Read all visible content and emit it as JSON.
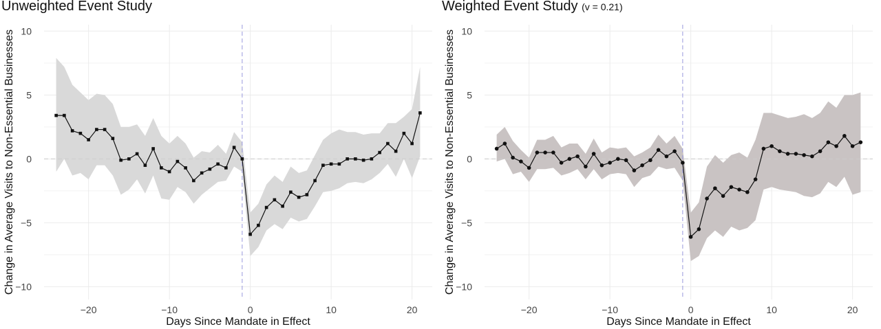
{
  "chart_data": [
    {
      "type": "line",
      "title": "Unweighted Event Study",
      "subtitle": "",
      "xlabel": "Days Since Mandate in Effect",
      "ylabel": "Change in Average Visits to Non-Essential Businesses",
      "xlim": [
        -25.5,
        22.5
      ],
      "ylim": [
        -11,
        10.5
      ],
      "xticks": [
        -20,
        -10,
        0,
        10,
        20
      ],
      "yticks": [
        -10,
        -5,
        0,
        5,
        10
      ],
      "vline": -1,
      "hline": 0,
      "grid": true,
      "colors": {
        "ribbon": "#d9d9d9",
        "line": "#111111",
        "vline": "#9999dd",
        "hline": "#cccccc"
      },
      "x": [
        -24,
        -23,
        -22,
        -21,
        -20,
        -19,
        -18,
        -17,
        -16,
        -15,
        -14,
        -13,
        -12,
        -11,
        -10,
        -9,
        -8,
        -7,
        -6,
        -5,
        -4,
        -3,
        -2,
        -1,
        0,
        1,
        2,
        3,
        4,
        5,
        6,
        7,
        8,
        9,
        10,
        11,
        12,
        13,
        14,
        15,
        16,
        17,
        18,
        19,
        20,
        21
      ],
      "series": [
        {
          "values": [
            3.4,
            3.4,
            2.2,
            2.0,
            1.5,
            2.3,
            2.3,
            1.6,
            -0.1,
            0.0,
            0.4,
            -0.5,
            0.8,
            -0.7,
            -1.0,
            -0.2,
            -0.7,
            -1.7,
            -1.1,
            -0.8,
            -0.4,
            -0.7,
            0.9,
            0.0,
            -5.9,
            -5.2,
            -3.8,
            -3.2,
            -3.7,
            -2.6,
            -3.0,
            -2.8,
            -1.7,
            -0.5,
            -0.4,
            -0.4,
            0.0,
            0.0,
            -0.1,
            0.0,
            0.5,
            1.2,
            0.6,
            2.0,
            1.2,
            3.6
          ],
          "lower": [
            -1.0,
            0.0,
            -1.3,
            -1.1,
            -1.6,
            -0.5,
            -0.5,
            -1.3,
            -2.8,
            -2.4,
            -1.6,
            -2.7,
            -1.3,
            -3.1,
            -3.2,
            -2.2,
            -2.6,
            -3.5,
            -2.8,
            -2.3,
            -1.8,
            -1.7,
            -0.6,
            -1.0,
            -7.6,
            -6.9,
            -5.6,
            -5.1,
            -5.5,
            -4.6,
            -4.9,
            -4.7,
            -3.7,
            -2.6,
            -2.5,
            -2.3,
            -1.9,
            -1.8,
            -1.9,
            -1.6,
            -1.1,
            -0.4,
            -1.4,
            0.0,
            -1.5,
            0.2
          ],
          "upper": [
            7.9,
            7.2,
            5.8,
            5.2,
            4.6,
            5.1,
            5.0,
            4.3,
            2.5,
            2.5,
            2.7,
            1.8,
            3.2,
            1.8,
            1.2,
            1.8,
            1.2,
            0.1,
            0.6,
            0.5,
            1.1,
            0.4,
            2.1,
            1.3,
            -4.2,
            -3.5,
            -2.0,
            -1.3,
            -1.8,
            -0.6,
            -1.1,
            -0.9,
            0.3,
            1.5,
            2.0,
            2.3,
            2.1,
            2.1,
            1.9,
            2.0,
            2.0,
            2.8,
            2.8,
            3.3,
            3.9,
            7.2
          ]
        }
      ]
    },
    {
      "type": "line",
      "title": "Weighted Event Study",
      "subtitle": "(v = 0.21)",
      "xlabel": "Days Since Mandate in Effect",
      "ylabel": "Change in Average Visits to Non-Essential Businesses",
      "xlim": [
        -25.5,
        22.5
      ],
      "ylim": [
        -11,
        10.5
      ],
      "xticks": [
        -20,
        -10,
        0,
        10,
        20
      ],
      "yticks": [
        -10,
        -5,
        0,
        5,
        10
      ],
      "vline": -1,
      "hline": 0,
      "grid": true,
      "colors": {
        "ribbon": "#c9c3c3",
        "line": "#111111",
        "vline": "#9999dd",
        "hline": "#cccccc"
      },
      "x": [
        -24,
        -23,
        -22,
        -21,
        -20,
        -19,
        -18,
        -17,
        -16,
        -15,
        -14,
        -13,
        -12,
        -11,
        -10,
        -9,
        -8,
        -7,
        -6,
        -5,
        -4,
        -3,
        -2,
        -1,
        0,
        1,
        2,
        3,
        4,
        5,
        6,
        7,
        8,
        9,
        10,
        11,
        12,
        13,
        14,
        15,
        16,
        17,
        18,
        19,
        20,
        21
      ],
      "series": [
        {
          "values": [
            0.8,
            1.2,
            0.1,
            -0.2,
            -0.7,
            0.5,
            0.5,
            0.5,
            -0.3,
            0.0,
            0.2,
            -0.6,
            0.4,
            -0.5,
            -0.3,
            0.0,
            -0.1,
            -0.9,
            -0.5,
            -0.1,
            0.7,
            0.2,
            0.6,
            -0.3,
            -6.1,
            -5.5,
            -3.1,
            -2.3,
            -2.9,
            -2.2,
            -2.4,
            -2.6,
            -1.6,
            0.8,
            1.0,
            0.6,
            0.4,
            0.4,
            0.3,
            0.2,
            0.6,
            1.3,
            1.0,
            1.8,
            1.0,
            1.3
          ],
          "lower": [
            -0.2,
            0.0,
            -1.2,
            -1.0,
            -1.8,
            -0.8,
            -0.8,
            -0.7,
            -1.3,
            -1.1,
            -0.8,
            -1.6,
            -0.8,
            -1.6,
            -1.2,
            -1.1,
            -1.2,
            -2.2,
            -1.5,
            -1.3,
            -0.6,
            -0.8,
            -0.7,
            -1.7,
            -8.0,
            -7.6,
            -6.2,
            -5.6,
            -6.1,
            -5.3,
            -5.6,
            -5.4,
            -4.8,
            -2.4,
            -2.2,
            -2.4,
            -2.5,
            -2.6,
            -2.9,
            -3.0,
            -2.7,
            -1.8,
            -2.2,
            -1.4,
            -2.8,
            -2.6
          ],
          "upper": [
            1.9,
            2.5,
            1.4,
            0.7,
            0.1,
            1.5,
            1.5,
            1.8,
            0.9,
            1.2,
            1.2,
            0.4,
            1.6,
            0.5,
            0.9,
            0.8,
            0.9,
            0.2,
            0.5,
            0.9,
            1.9,
            1.2,
            1.8,
            0.8,
            -4.2,
            -3.4,
            -0.6,
            0.3,
            -0.3,
            0.3,
            0.5,
            0.1,
            1.5,
            3.6,
            3.6,
            3.4,
            3.2,
            3.3,
            3.5,
            3.2,
            3.6,
            4.5,
            4.0,
            5.0,
            5.0,
            5.2
          ]
        }
      ]
    }
  ]
}
